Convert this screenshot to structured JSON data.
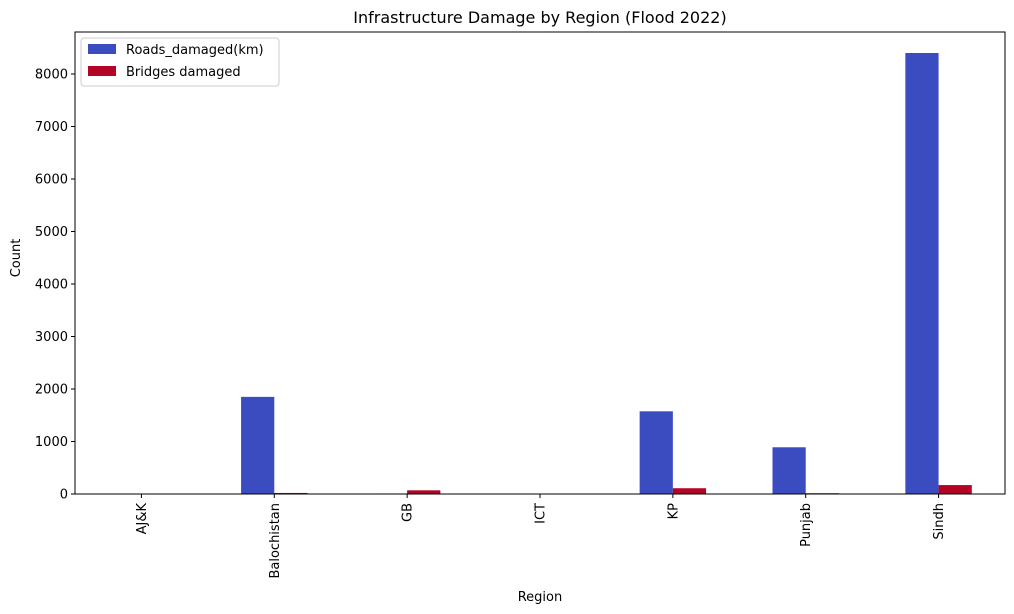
{
  "chart_data": {
    "type": "bar",
    "title": "Infrastructure Damage by Region (Flood 2022)",
    "xlabel": "Region",
    "ylabel": "Count",
    "categories": [
      "AJ&K",
      "Balochistan",
      "GB",
      "ICT",
      "KP",
      "Punjab",
      "Sindh"
    ],
    "series": [
      {
        "name": "Roads_damaged(km)",
        "color": "#3b4cc0",
        "values": [
          0,
          1850,
          10,
          0,
          1575,
          890,
          8400
        ]
      },
      {
        "name": "Bridges damaged",
        "color": "#b40426",
        "values": [
          0,
          20,
          70,
          0,
          110,
          15,
          170
        ]
      }
    ],
    "ylim": [
      0,
      8800
    ],
    "yticks": [
      0,
      1000,
      2000,
      3000,
      4000,
      5000,
      6000,
      7000,
      8000
    ],
    "grid": false,
    "legend_position": "top-left"
  }
}
